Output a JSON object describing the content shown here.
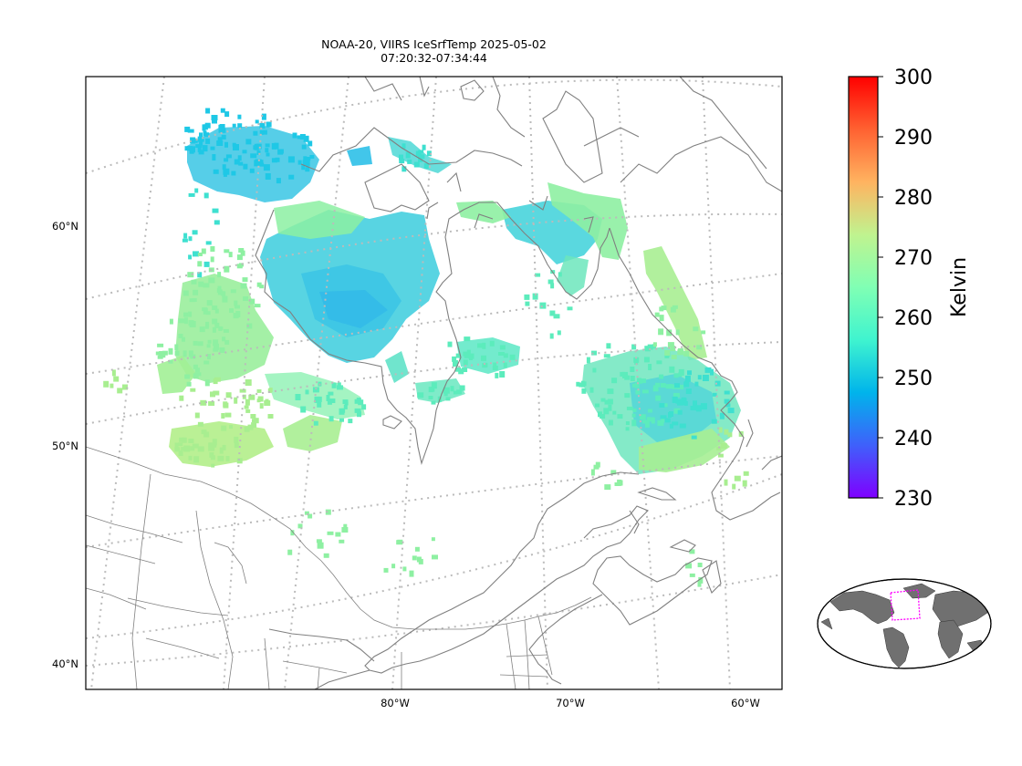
{
  "title": {
    "line1": "NOAA-20, VIIRS IceSrfTemp 2025-05-02",
    "line2": "07:20:32-07:34:44"
  },
  "map": {
    "projection": "conic",
    "lat_labels": [
      "60°N",
      "50°N",
      "40°N"
    ],
    "lon_labels": [
      "80°W",
      "70°W",
      "60°W"
    ],
    "gridlines": "dotted",
    "coastline_color": "#808080"
  },
  "colorbar": {
    "label": "Kelvin",
    "min": 230,
    "max": 300,
    "ticks": [
      "300",
      "290",
      "280",
      "270",
      "260",
      "250",
      "240",
      "230"
    ],
    "colormap": "rainbow",
    "colors": [
      "#7f00ff",
      "#3f60fb",
      "#00b4eb",
      "#3ff4cf",
      "#80ffb4",
      "#c0f38f",
      "#ffb360",
      "#ff6131",
      "#ff0000"
    ]
  },
  "inset": {
    "description_color": "#ff00ff",
    "land_color": "#707070"
  },
  "swath": {
    "palette": {
      "cold": "#1ec8e6",
      "cool": "#3ee0d0",
      "mid": "#5cecbc",
      "warm": "#8ef0a2",
      "warmer": "#a8ee90"
    }
  }
}
